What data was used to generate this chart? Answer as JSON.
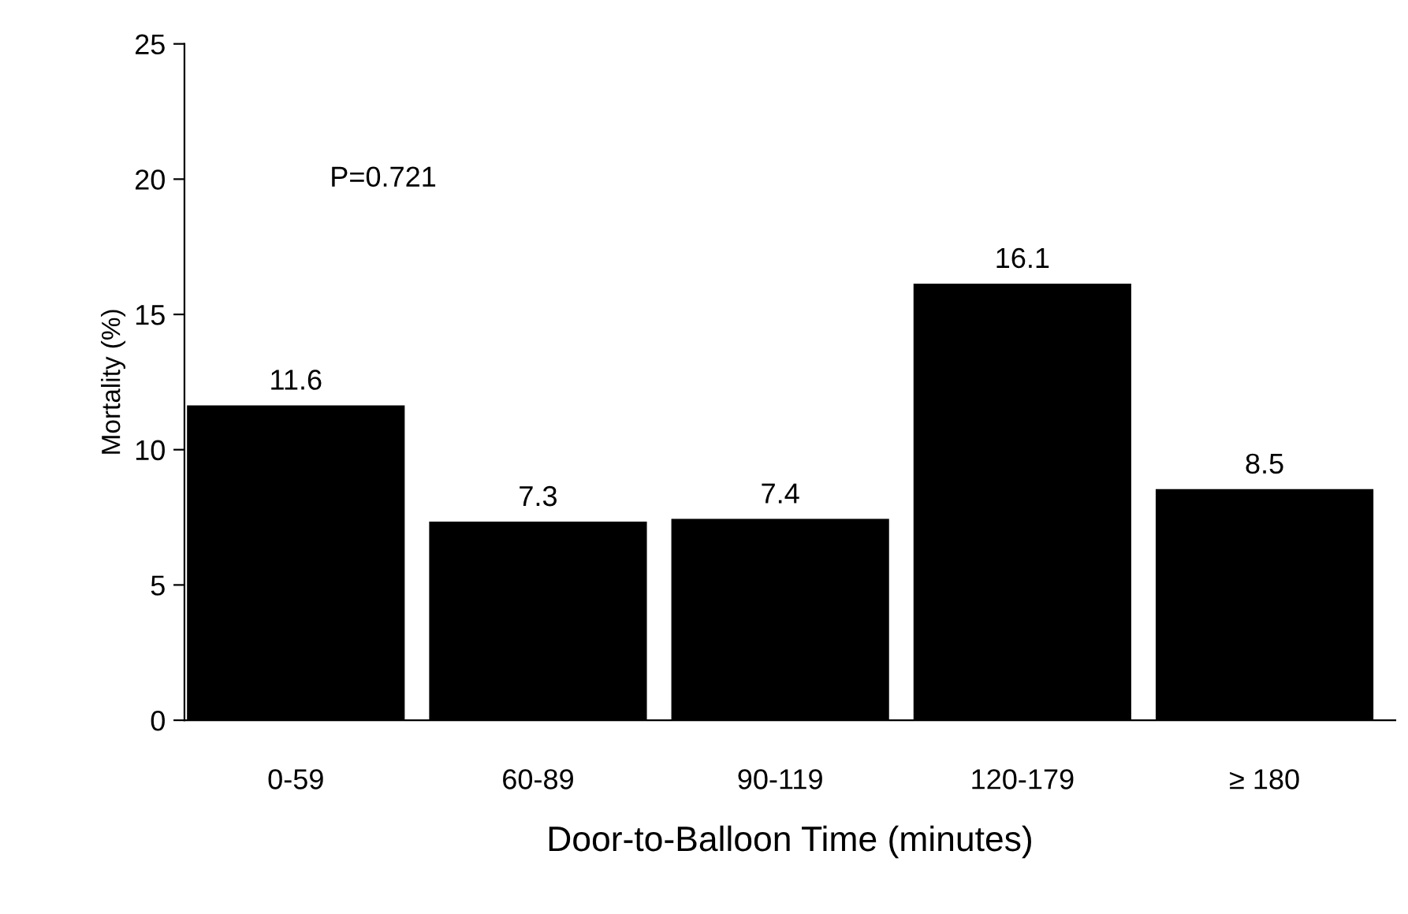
{
  "chart_data": {
    "type": "bar",
    "categories": [
      "0-59",
      "60-89",
      "90-119",
      "120-179",
      "≥ 180"
    ],
    "values": [
      11.6,
      7.3,
      7.4,
      16.1,
      8.5
    ],
    "color": "#000000",
    "xlabel": "Door-to-Balloon Time (minutes)",
    "ylabel": "Mortality (%)",
    "ylim": [
      0,
      25
    ],
    "yticks": [
      0,
      5,
      10,
      15,
      20,
      25
    ],
    "annotations": [
      "P=0.721"
    ],
    "data_labels": true,
    "grid": false,
    "legend": false
  }
}
